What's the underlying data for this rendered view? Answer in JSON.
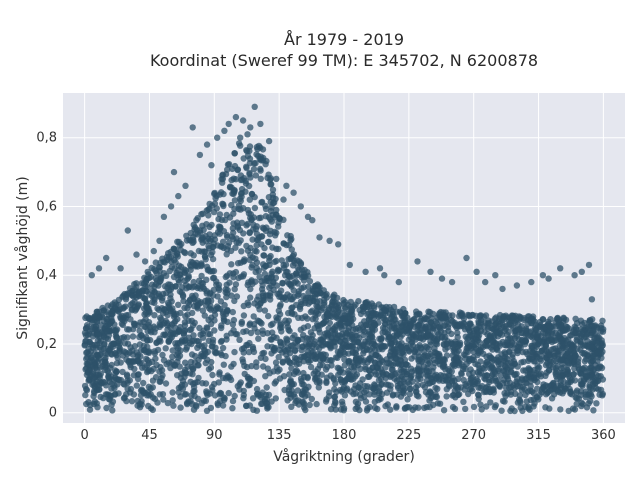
{
  "chart_data": {
    "type": "scatter",
    "title_lines": [
      "År 1979 - 2019",
      "Koordinat (Sweref 99 TM): E 345702, N 6200878"
    ],
    "xlabel": "Vågriktning (grader)",
    "ylabel": "Signifikant våghöjd (m)",
    "xlim": [
      -15,
      375
    ],
    "ylim": [
      -0.03,
      0.93
    ],
    "xticks": [
      0,
      45,
      90,
      135,
      180,
      225,
      270,
      315,
      360
    ],
    "yticks": [
      0,
      0.2,
      0.4,
      0.6,
      0.8
    ],
    "ytick_labels": [
      "0",
      "0,2",
      "0,4",
      "0,6",
      "0,8"
    ],
    "grid": true,
    "colors": {
      "points": "#2e5269",
      "plot_bg": "#e5e7ef",
      "grid": "#ffffff"
    },
    "envelope": {
      "x": [
        0,
        20,
        45,
        70,
        90,
        100,
        110,
        118,
        125,
        135,
        150,
        165,
        180,
        200,
        225,
        270,
        315,
        360
      ],
      "upper": [
        0.28,
        0.32,
        0.42,
        0.52,
        0.64,
        0.74,
        0.8,
        0.8,
        0.76,
        0.6,
        0.44,
        0.36,
        0.33,
        0.32,
        0.3,
        0.29,
        0.28,
        0.27
      ],
      "lower": [
        0.04,
        0.04,
        0.05,
        0.05,
        0.05,
        0.05,
        0.05,
        0.05,
        0.05,
        0.05,
        0.05,
        0.05,
        0.05,
        0.05,
        0.05,
        0.05,
        0.05,
        0.05
      ]
    },
    "outliers": [
      [
        118,
        0.89
      ],
      [
        105,
        0.86
      ],
      [
        110,
        0.85
      ],
      [
        100,
        0.84
      ],
      [
        122,
        0.84
      ],
      [
        97,
        0.82
      ],
      [
        75,
        0.83
      ],
      [
        85,
        0.78
      ],
      [
        128,
        0.79
      ],
      [
        88,
        0.72
      ],
      [
        92,
        0.8
      ],
      [
        62,
        0.7
      ],
      [
        70,
        0.66
      ],
      [
        80,
        0.75
      ],
      [
        60,
        0.6
      ],
      [
        55,
        0.57
      ],
      [
        65,
        0.63
      ],
      [
        133,
        0.68
      ],
      [
        140,
        0.66
      ],
      [
        145,
        0.64
      ],
      [
        138,
        0.62
      ],
      [
        150,
        0.6
      ],
      [
        155,
        0.57
      ],
      [
        158,
        0.56
      ],
      [
        163,
        0.51
      ],
      [
        170,
        0.5
      ],
      [
        176,
        0.49
      ],
      [
        184,
        0.43
      ],
      [
        195,
        0.41
      ],
      [
        205,
        0.42
      ],
      [
        208,
        0.4
      ],
      [
        218,
        0.38
      ],
      [
        231,
        0.44
      ],
      [
        240,
        0.41
      ],
      [
        248,
        0.39
      ],
      [
        255,
        0.38
      ],
      [
        265,
        0.45
      ],
      [
        272,
        0.41
      ],
      [
        278,
        0.38
      ],
      [
        285,
        0.4
      ],
      [
        290,
        0.36
      ],
      [
        300,
        0.37
      ],
      [
        310,
        0.38
      ],
      [
        318,
        0.4
      ],
      [
        322,
        0.39
      ],
      [
        330,
        0.42
      ],
      [
        340,
        0.4
      ],
      [
        345,
        0.41
      ],
      [
        350,
        0.43
      ],
      [
        352,
        0.33
      ],
      [
        30,
        0.53
      ],
      [
        36,
        0.46
      ],
      [
        25,
        0.42
      ],
      [
        15,
        0.45
      ],
      [
        10,
        0.42
      ],
      [
        5,
        0.4
      ],
      [
        42,
        0.44
      ],
      [
        48,
        0.47
      ],
      [
        52,
        0.5
      ],
      [
        115,
        0.83
      ],
      [
        113,
        0.81
      ],
      [
        108,
        0.8
      ]
    ],
    "dense_point_count": 3600,
    "low_scatter_count": 250
  }
}
